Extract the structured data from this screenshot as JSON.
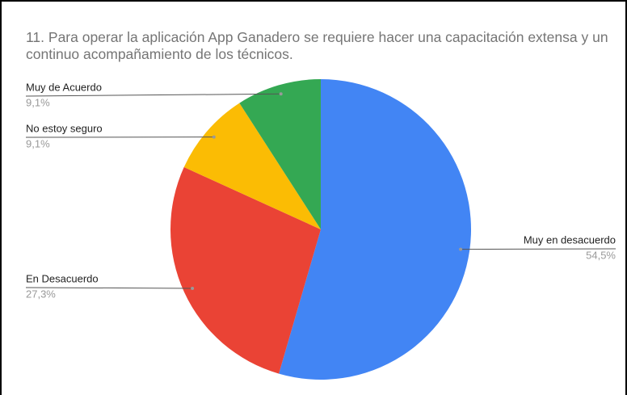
{
  "chart_data": {
    "type": "pie",
    "title": "11. Para operar la aplicación App Ganadero se requiere hacer una capacitación extensa y un continuo acompañamiento de los técnicos.",
    "categories": [
      "Muy en desacuerdo",
      "En Desacuerdo",
      "No estoy seguro",
      "Muy de Acuerdo"
    ],
    "values": [
      54.5,
      27.3,
      9.1,
      9.1
    ],
    "value_labels": [
      "54,5%",
      "27,3%",
      "9,1%",
      "9,1%"
    ],
    "colors": [
      "#4285f4",
      "#ea4335",
      "#fbbc04",
      "#34a853"
    ]
  }
}
